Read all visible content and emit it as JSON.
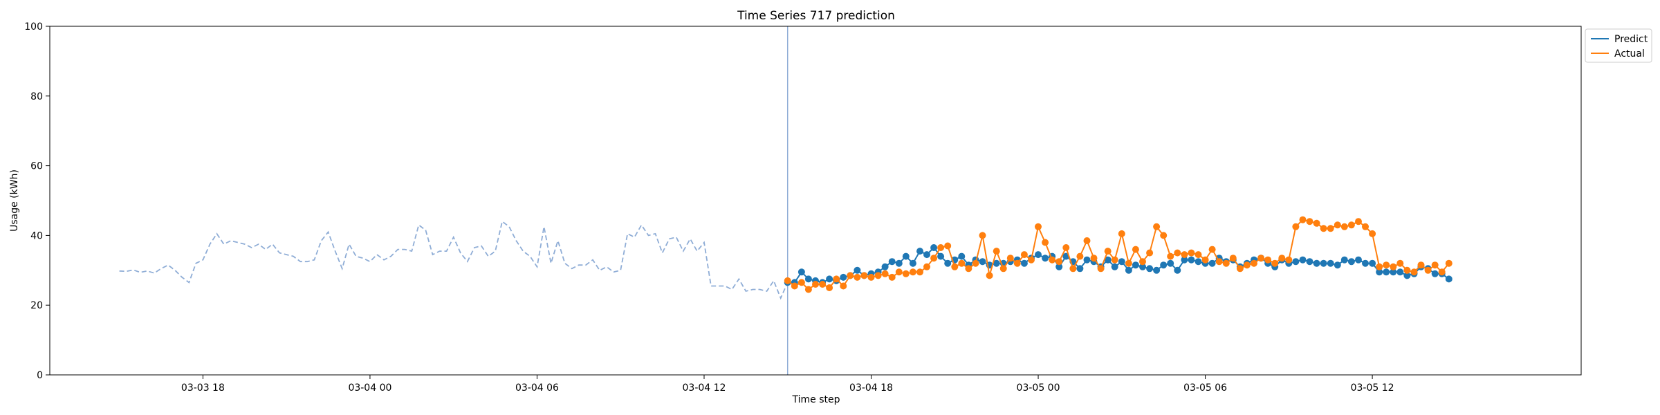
{
  "chart_data": {
    "type": "line",
    "title": "Time Series 717 prediction",
    "xlabel": "Time step",
    "ylabel": "Usage (kWh)",
    "ylim": [
      0,
      100
    ],
    "yticks": [
      0,
      20,
      40,
      60,
      80,
      100
    ],
    "xlim": [
      "2024-03-03 12:30",
      "2024-03-05 19:30"
    ],
    "xticks": [
      {
        "value": "2024-03-03 18:00",
        "label": "03-03 18"
      },
      {
        "value": "2024-03-04 00:00",
        "label": "03-04 00"
      },
      {
        "value": "2024-03-04 06:00",
        "label": "03-04 06"
      },
      {
        "value": "2024-03-04 12:00",
        "label": "03-04 12"
      },
      {
        "value": "2024-03-04 18:00",
        "label": "03-04 18"
      },
      {
        "value": "2024-03-05 00:00",
        "label": "03-05 00"
      },
      {
        "value": "2024-03-05 06:00",
        "label": "03-05 06"
      },
      {
        "value": "2024-03-05 12:00",
        "label": "03-05 12"
      }
    ],
    "grid": false,
    "legend": {
      "placement": "top-right, outside plot",
      "entries": [
        "Predict",
        "Actual"
      ]
    },
    "colors": {
      "history": "#8fadd6",
      "predict": "#1f77b4",
      "actual": "#ff7f0e",
      "divider": "#8fadd6"
    },
    "divider_x": "2024-03-04 15:00",
    "history": {
      "start": "2024-03-03 15:00",
      "step_minutes": 15,
      "values": [
        29.8,
        29.7,
        30.1,
        29.4,
        29.8,
        29.2,
        30.5,
        31.5,
        30.0,
        28.0,
        26.5,
        32.0,
        33.0,
        37.5,
        40.5,
        37.5,
        38.5,
        38.0,
        37.5,
        36.5,
        37.5,
        36.0,
        37.5,
        35.0,
        34.5,
        34.0,
        32.5,
        32.5,
        33.0,
        38.5,
        41.0,
        35.5,
        30.5,
        37.5,
        34.0,
        33.5,
        32.5,
        34.5,
        33.0,
        34.0,
        36.0,
        36.0,
        35.5,
        43.0,
        41.5,
        34.5,
        35.5,
        35.5,
        39.5,
        35.0,
        32.5,
        36.5,
        37.0,
        34.0,
        35.5,
        44.0,
        42.5,
        38.5,
        35.5,
        34.0,
        31.0,
        42.5,
        32.0,
        38.5,
        32.0,
        30.5,
        31.5,
        31.5,
        33.0,
        30.0,
        31.0,
        29.5,
        30.0,
        40.5,
        39.5,
        43.0,
        40.0,
        40.5,
        35.0,
        39.0,
        39.5,
        35.5,
        39.0,
        35.5,
        38.0,
        25.5,
        25.5,
        25.5,
        24.5,
        27.5,
        24.0,
        24.5,
        24.5,
        24.0,
        27.0,
        22.0,
        26.5
      ]
    },
    "series": [
      {
        "name": "Predict",
        "start": "2024-03-04 15:00",
        "step_minutes": 15,
        "values": [
          26.5,
          26.5,
          29.5,
          27.5,
          27.0,
          26.5,
          27.5,
          27.0,
          28.0,
          28.5,
          30.0,
          28.5,
          29.0,
          29.5,
          31.0,
          32.5,
          32.0,
          34.0,
          32.0,
          35.5,
          34.5,
          36.5,
          34.0,
          32.0,
          33.0,
          34.0,
          31.5,
          33.0,
          32.5,
          31.5,
          32.0,
          32.0,
          32.5,
          33.0,
          32.0,
          33.5,
          34.5,
          33.5,
          34.0,
          31.0,
          34.0,
          32.5,
          30.5,
          33.0,
          32.5,
          31.0,
          33.0,
          31.0,
          32.5,
          30.0,
          31.5,
          31.0,
          30.5,
          30.0,
          31.5,
          32.0,
          30.0,
          33.0,
          33.0,
          32.5,
          32.0,
          32.0,
          33.5,
          32.5,
          33.0,
          31.0,
          32.0,
          33.0,
          33.5,
          32.0,
          31.0,
          33.0,
          32.0,
          32.5,
          33.0,
          32.5,
          32.0,
          32.0,
          32.0,
          31.5,
          33.0,
          32.5,
          33.0,
          32.0,
          32.0,
          29.5,
          29.5,
          29.5,
          29.5,
          28.5,
          29.0,
          31.0,
          30.5,
          29.0,
          29.0,
          27.5
        ]
      },
      {
        "name": "Actual",
        "start": "2024-03-04 15:00",
        "step_minutes": 15,
        "values": [
          27.0,
          25.5,
          26.5,
          24.5,
          26.0,
          26.0,
          25.0,
          27.5,
          25.5,
          28.5,
          28.0,
          28.5,
          28.0,
          28.5,
          29.0,
          28.0,
          29.5,
          29.0,
          29.5,
          29.5,
          31.0,
          33.5,
          36.5,
          37.0,
          31.0,
          32.0,
          30.5,
          32.0,
          40.0,
          28.5,
          35.5,
          30.5,
          33.5,
          32.0,
          34.5,
          33.0,
          42.5,
          38.0,
          33.0,
          32.5,
          36.5,
          30.5,
          34.0,
          38.5,
          33.5,
          30.5,
          35.5,
          33.0,
          40.5,
          32.0,
          36.0,
          32.5,
          35.0,
          42.5,
          40.0,
          34.0,
          35.0,
          34.5,
          35.0,
          34.5,
          33.0,
          36.0,
          32.5,
          32.0,
          33.5,
          30.5,
          31.5,
          32.0,
          33.5,
          33.0,
          32.0,
          33.5,
          33.0,
          42.5,
          44.5,
          44.0,
          43.5,
          42.0,
          42.0,
          43.0,
          42.5,
          43.0,
          44.0,
          42.5,
          40.5,
          31.0,
          31.5,
          31.0,
          32.0,
          30.0,
          29.5,
          31.5,
          30.0,
          31.5,
          29.5,
          32.0
        ]
      }
    ]
  }
}
